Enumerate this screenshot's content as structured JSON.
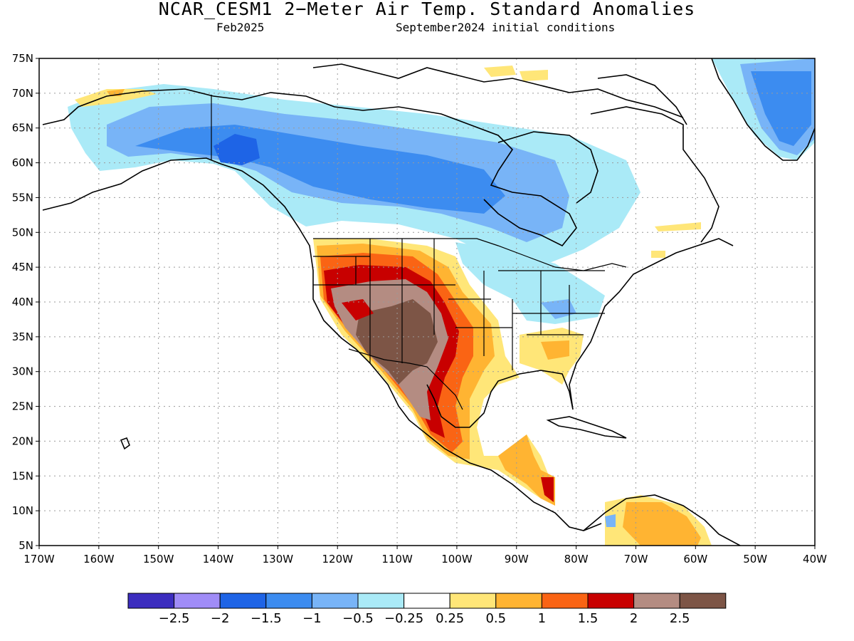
{
  "title": "NCAR_CESM1 2−Meter Air Temp. Standard Anomalies",
  "subtitle_left": "Feb2025",
  "subtitle_right": "September2024 initial conditions",
  "lat_labels": [
    "75N",
    "70N",
    "65N",
    "60N",
    "55N",
    "50N",
    "45N",
    "40N",
    "35N",
    "30N",
    "25N",
    "20N",
    "15N",
    "10N",
    "5N"
  ],
  "lon_labels": [
    "170W",
    "160W",
    "150W",
    "140W",
    "130W",
    "120W",
    "110W",
    "100W",
    "90W",
    "80W",
    "70W",
    "60W",
    "50W",
    "40W"
  ],
  "colorbar": {
    "colors": [
      "#3c2dbf",
      "#a08cf7",
      "#1e64e6",
      "#3c8cf0",
      "#78b4f7",
      "#aaeaf7",
      "#ffffff",
      "#ffe678",
      "#ffb432",
      "#fa6414",
      "#c80000",
      "#b48c82",
      "#7d5546"
    ],
    "labels": [
      "−2.5",
      "−2",
      "−1.5",
      "−1",
      "−0.5",
      "−0.25",
      "0.25",
      "0.5",
      "1",
      "1.5",
      "2",
      "2.5"
    ]
  },
  "colors": {
    "land_line": "#000000",
    "grid": "#9a9a9a"
  }
}
